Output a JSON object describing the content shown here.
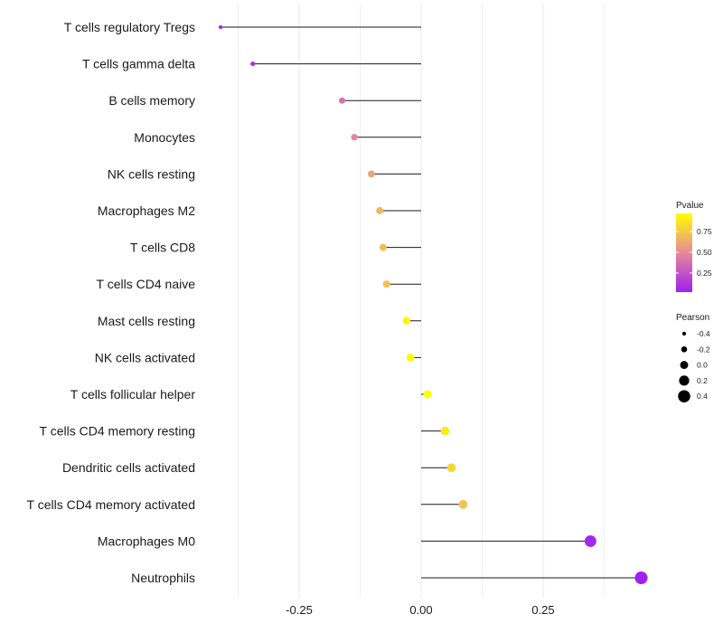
{
  "chart_data": {
    "type": "lollipop",
    "title": "",
    "xlabel": "",
    "ylabel": "",
    "xlim": [
      -0.5,
      0.5
    ],
    "xticks": [
      -0.25,
      0.0,
      0.25
    ],
    "xtick_labels": [
      "-0.25",
      "0.00",
      "0.25"
    ],
    "grid": true,
    "categories": [
      "T cells regulatory  Tregs",
      "T cells gamma delta",
      "B cells memory",
      "Monocytes",
      "NK cells resting",
      "Macrophages M2",
      "T cells CD8",
      "T cells CD4 naive",
      "Mast cells resting",
      "NK cells activated",
      "T cells follicular helper",
      "T cells CD4 memory resting",
      "Dendritic cells activated",
      "T cells CD4 memory activated",
      "Macrophages M0",
      "Neutrophils"
    ],
    "pearson": [
      -0.411,
      -0.345,
      -0.162,
      -0.137,
      -0.102,
      -0.085,
      -0.078,
      -0.071,
      -0.03,
      -0.022,
      0.013,
      0.049,
      0.062,
      0.086,
      0.347,
      0.451
    ],
    "pvalue": [
      0.02,
      0.05,
      0.4,
      0.48,
      0.6,
      0.68,
      0.7,
      0.72,
      0.93,
      0.95,
      0.97,
      0.88,
      0.8,
      0.73,
      0.05,
      0.02
    ],
    "color_legend": {
      "title": "Pvalue",
      "ticks": [
        0.25,
        0.5,
        0.75
      ],
      "tick_labels": [
        "0.25",
        "0.50",
        "0.75"
      ],
      "low_color": "#a020f0",
      "mid_color": "#e6899a",
      "high_color": "#ffff00"
    },
    "size_legend": {
      "title": "Pearson",
      "values": [
        -0.4,
        -0.2,
        0.0,
        0.2,
        0.4
      ],
      "labels": [
        "-0.4",
        "-0.2",
        "0.0",
        "0.2",
        "0.4"
      ]
    },
    "colors": {
      "stem": "#1a1a1a",
      "grid": "#ebebeb",
      "text": "#1a1a1a"
    }
  }
}
